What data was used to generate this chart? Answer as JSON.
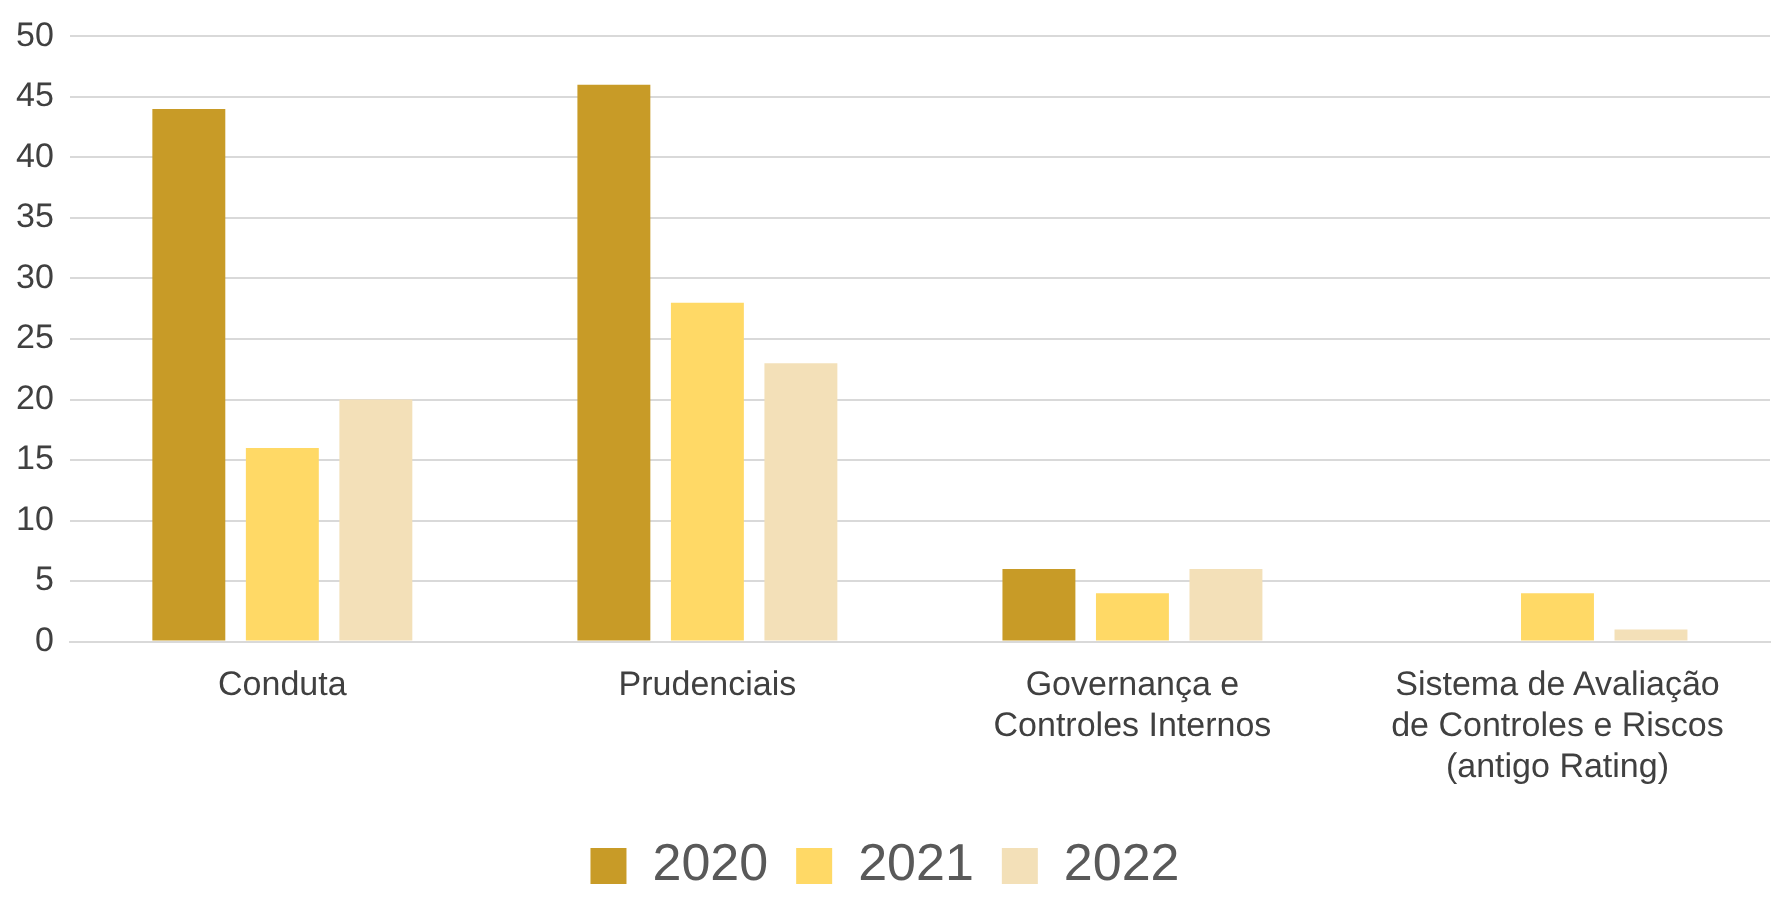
{
  "chart_data": {
    "type": "bar",
    "categories": [
      "Conduta",
      "Prudenciais",
      "Governança e Controles Internos",
      "Sistema de Avaliação de Controles e Riscos (antigo Rating)"
    ],
    "series": [
      {
        "name": "2020",
        "color": "#c89b27",
        "values": [
          44,
          46,
          6,
          0
        ]
      },
      {
        "name": "2021",
        "color": "#ffd966",
        "values": [
          16,
          28,
          4,
          4
        ]
      },
      {
        "name": "2022",
        "color": "#f3e0b8",
        "values": [
          20,
          23,
          6,
          1
        ]
      }
    ],
    "ylim": [
      0,
      50
    ],
    "yticks": [
      0,
      5,
      10,
      15,
      20,
      25,
      30,
      35,
      40,
      45,
      50
    ],
    "grid": "y",
    "legend": "bottom"
  }
}
